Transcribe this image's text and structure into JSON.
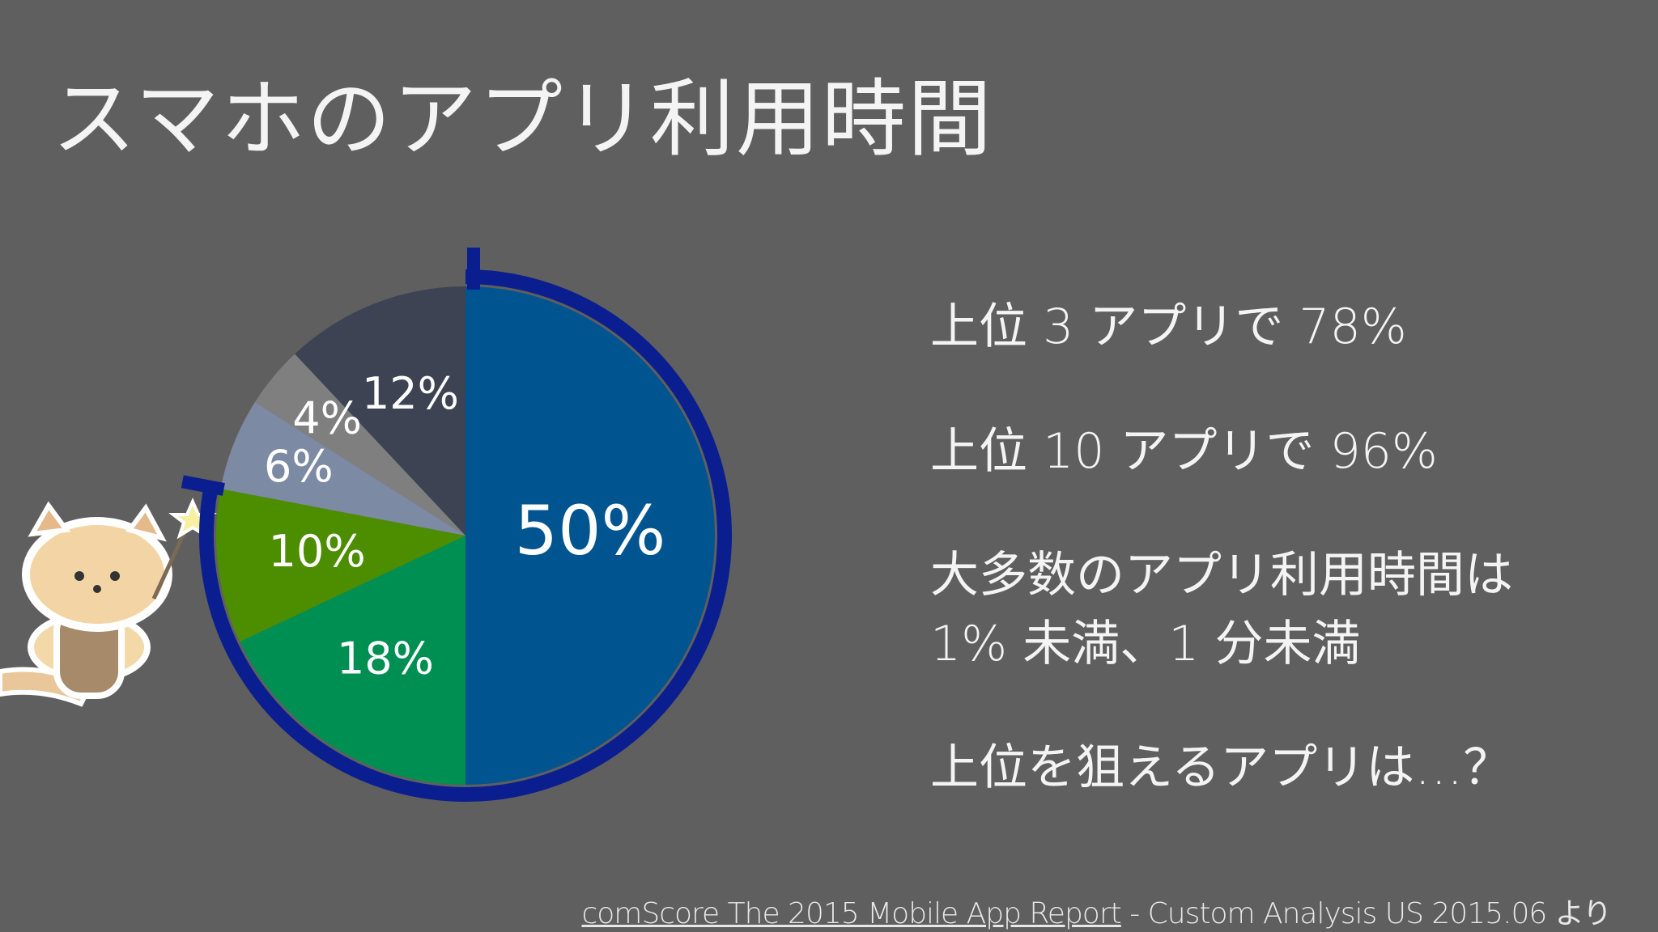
{
  "chart_data": {
    "type": "pie",
    "title": "スマホのアプリ利用時間",
    "values": [
      50,
      18,
      10,
      6,
      4,
      12
    ],
    "value_labels": [
      "50%",
      "18%",
      "10%",
      "6%",
      "4%",
      "12%"
    ],
    "colors": [
      "#00548f",
      "#008f52",
      "#4c8e00",
      "#7d8aa3",
      "#7f7f7f",
      "#3d4352"
    ],
    "annotations": [
      "上位 3 アプリで 78%",
      "上位 10 アプリで 96%",
      "大多数のアプリ利用時間は",
      "1% 未満、1 分未満",
      "上位を狙えるアプリは…？"
    ],
    "source": {
      "link": "comScore The 2015 Mobile App Report",
      "text": " - Custom Analysis  US 2015.06 より"
    }
  }
}
